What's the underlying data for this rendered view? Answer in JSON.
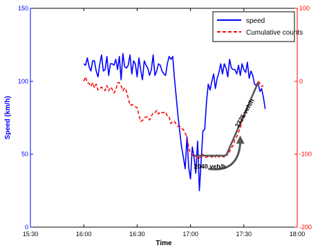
{
  "chart_data": {
    "type": "line",
    "xlabel": "Time",
    "ylabel_left": "Speed (km/h)",
    "ylabel_right": "",
    "x_ticks": [
      "15:30",
      "16:00",
      "16:30",
      "17:00",
      "17:30",
      "18:00"
    ],
    "x_tick_minutes": [
      0,
      30,
      60,
      90,
      120,
      150
    ],
    "xlim_minutes": [
      0,
      150
    ],
    "ylim_left": [
      0,
      150
    ],
    "left_ticks": [
      0,
      50,
      100,
      150
    ],
    "ylim_right": [
      -200,
      100
    ],
    "right_ticks": [
      -200,
      -100,
      0,
      100
    ],
    "grid": false,
    "legend_position": "top-right",
    "colors": {
      "speed": "#0000ff",
      "counts": "#ff0000",
      "axis_left": "#0000ff",
      "axis_right": "#ff0000",
      "annotation": "#555555"
    },
    "series": [
      {
        "name": "speed",
        "axis": "left",
        "style": "solid",
        "points": [
          [
            30,
            112
          ],
          [
            31,
            111
          ],
          [
            32,
            116
          ],
          [
            33,
            110
          ],
          [
            34,
            107
          ],
          [
            35,
            114
          ],
          [
            36,
            114
          ],
          [
            37,
            107
          ],
          [
            38,
            103
          ],
          [
            39,
            112
          ],
          [
            40,
            118
          ],
          [
            41,
            107
          ],
          [
            42,
            108
          ],
          [
            43,
            117
          ],
          [
            44,
            104
          ],
          [
            45,
            112
          ],
          [
            46,
            112
          ],
          [
            47,
            111
          ],
          [
            48,
            115
          ],
          [
            49,
            108
          ],
          [
            50,
            117
          ],
          [
            51,
            101
          ],
          [
            52,
            119
          ],
          [
            53,
            110
          ],
          [
            54,
            109
          ],
          [
            55,
            111
          ],
          [
            56,
            118
          ],
          [
            57,
            105
          ],
          [
            58,
            114
          ],
          [
            59,
            112
          ],
          [
            60,
            103
          ],
          [
            61,
            116
          ],
          [
            62,
            108
          ],
          [
            63,
            101
          ],
          [
            64,
            114
          ],
          [
            65,
            111
          ],
          [
            66,
            109
          ],
          [
            67,
            104
          ],
          [
            68,
            108
          ],
          [
            69,
            118
          ],
          [
            70,
            104
          ],
          [
            71,
            107
          ],
          [
            72,
            112
          ],
          [
            73,
            111
          ],
          [
            74,
            107
          ],
          [
            75,
            105
          ],
          [
            76,
            104
          ],
          [
            77,
            112
          ],
          [
            78,
            117
          ],
          [
            79,
            115
          ],
          [
            80,
            117
          ],
          [
            81,
            102
          ],
          [
            82,
            89
          ],
          [
            83,
            76
          ],
          [
            84,
            65
          ],
          [
            85,
            55
          ],
          [
            86,
            48
          ],
          [
            87,
            40
          ],
          [
            88,
            62
          ],
          [
            89,
            41
          ],
          [
            90,
            33
          ],
          [
            91,
            55
          ],
          [
            92,
            48
          ],
          [
            93,
            37
          ],
          [
            94,
            59
          ],
          [
            95,
            25
          ],
          [
            96,
            45
          ],
          [
            97,
            66
          ],
          [
            98,
            67
          ],
          [
            99,
            86
          ],
          [
            100,
            98
          ],
          [
            101,
            94
          ],
          [
            102,
            100
          ],
          [
            103,
            105
          ],
          [
            104,
            95
          ],
          [
            105,
            102
          ],
          [
            106,
            106
          ],
          [
            107,
            112
          ],
          [
            108,
            105
          ],
          [
            109,
            112
          ],
          [
            110,
            109
          ],
          [
            111,
            103
          ],
          [
            112,
            115
          ],
          [
            113,
            109
          ],
          [
            114,
            108
          ],
          [
            115,
            108
          ],
          [
            116,
            105
          ],
          [
            117,
            111
          ],
          [
            118,
            104
          ],
          [
            119,
            112
          ],
          [
            120,
            108
          ],
          [
            121,
            106
          ],
          [
            122,
            113
          ],
          [
            123,
            102
          ],
          [
            124,
            107
          ],
          [
            125,
            104
          ],
          [
            126,
            98
          ],
          [
            127,
            97
          ],
          [
            128,
            99
          ],
          [
            129,
            93
          ],
          [
            130,
            95
          ],
          [
            131,
            89
          ],
          [
            132,
            81
          ]
        ]
      },
      {
        "name": "Cumulative counts",
        "axis": "right",
        "style": "dashed",
        "points": [
          [
            30,
            0
          ],
          [
            31,
            6
          ],
          [
            32,
            -2
          ],
          [
            33,
            -3
          ],
          [
            34,
            -7
          ],
          [
            35,
            -2
          ],
          [
            36,
            -9
          ],
          [
            37,
            -4
          ],
          [
            38,
            -12
          ],
          [
            39,
            -10
          ],
          [
            40,
            -8
          ],
          [
            41,
            -11
          ],
          [
            42,
            -13
          ],
          [
            43,
            -6
          ],
          [
            44,
            -13
          ],
          [
            45,
            -8
          ],
          [
            46,
            -11
          ],
          [
            47,
            -16
          ],
          [
            48,
            -12
          ],
          [
            49,
            -2
          ],
          [
            50,
            -2
          ],
          [
            51,
            -6
          ],
          [
            52,
            -13
          ],
          [
            53,
            -9
          ],
          [
            54,
            -14
          ],
          [
            55,
            -23
          ],
          [
            56,
            -33
          ],
          [
            57,
            -32
          ],
          [
            58,
            -33
          ],
          [
            59,
            -35
          ],
          [
            60,
            -36
          ],
          [
            61,
            -46
          ],
          [
            62,
            -55
          ],
          [
            63,
            -54
          ],
          [
            64,
            -50
          ],
          [
            65,
            -49
          ],
          [
            66,
            -49
          ],
          [
            67,
            -53
          ],
          [
            68,
            -48
          ],
          [
            69,
            -43
          ],
          [
            70,
            -43
          ],
          [
            71,
            -40
          ],
          [
            72,
            -45
          ],
          [
            73,
            -42
          ],
          [
            74,
            -43
          ],
          [
            75,
            -43
          ],
          [
            76,
            -42
          ],
          [
            77,
            -48
          ],
          [
            78,
            -49
          ],
          [
            79,
            -58
          ],
          [
            80,
            -55
          ],
          [
            81,
            -55
          ],
          [
            82,
            -59
          ],
          [
            83,
            -62
          ],
          [
            84,
            -62
          ],
          [
            85,
            -65
          ],
          [
            86,
            -66
          ],
          [
            87,
            -71
          ],
          [
            88,
            -76
          ],
          [
            89,
            -91
          ],
          [
            90,
            -99
          ],
          [
            91,
            -101
          ],
          [
            92,
            -103
          ],
          [
            93,
            -102
          ],
          [
            94,
            -107
          ],
          [
            95,
            -105
          ],
          [
            96,
            -104
          ],
          [
            97,
            -100
          ],
          [
            98,
            -105
          ],
          [
            99,
            -104
          ],
          [
            100,
            -103
          ],
          [
            101,
            -104
          ],
          [
            102,
            -103
          ],
          [
            103,
            -105
          ],
          [
            104,
            -104
          ],
          [
            105,
            -100
          ],
          [
            106,
            -104
          ],
          [
            107,
            -101
          ],
          [
            108,
            -103
          ],
          [
            109,
            -104
          ],
          [
            110,
            -100
          ],
          [
            111,
            -101
          ],
          [
            112,
            -96
          ],
          [
            113,
            -91
          ],
          [
            114,
            -88
          ],
          [
            115,
            -80
          ],
          [
            116,
            -76
          ],
          [
            117,
            -70
          ],
          [
            118,
            -64
          ],
          [
            119,
            -55
          ],
          [
            120,
            -51
          ],
          [
            121,
            -44
          ],
          [
            122,
            -36
          ],
          [
            123,
            -31
          ],
          [
            124,
            -24
          ],
          [
            125,
            -18
          ],
          [
            126,
            -12
          ],
          [
            127,
            -5
          ],
          [
            128,
            0
          ],
          [
            129,
            -3
          ],
          [
            130,
            -7
          ],
          [
            131,
            -6
          ]
        ]
      }
    ],
    "annotations": {
      "flat_fit": {
        "points": [
          [
            92,
            -102
          ],
          [
            110,
            -102
          ]
        ]
      },
      "slope_fit": {
        "points": [
          [
            110,
            -102
          ],
          [
            128,
            -2
          ]
        ]
      },
      "flat_label": "2040 veh/h",
      "slope_label": "2375 veh/h",
      "arrow": {
        "from": [
          100,
          -120
        ],
        "to": [
          118,
          -78
        ]
      }
    }
  }
}
